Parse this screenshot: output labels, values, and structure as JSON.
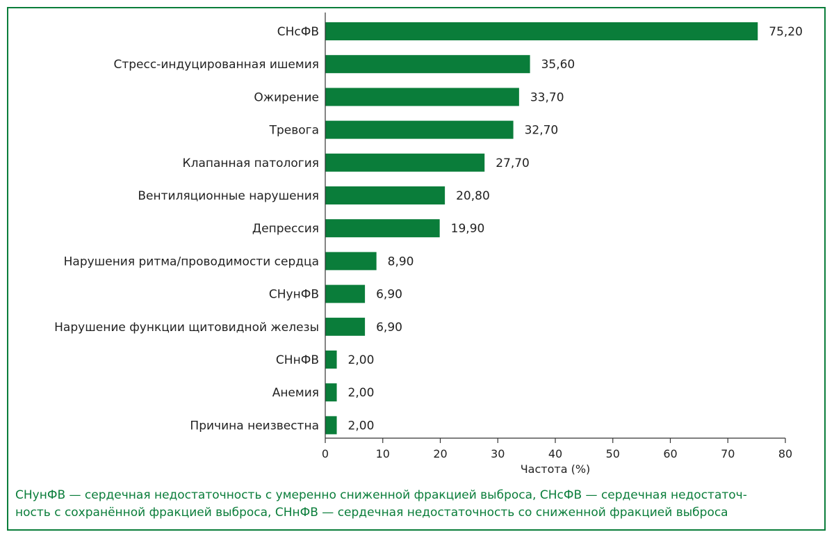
{
  "colors": {
    "bar": "#0a7d3a",
    "frame": "#0a7d3a",
    "footnote": "#0a7d3a",
    "text": "#222222"
  },
  "chart_data": {
    "type": "bar",
    "orientation": "horizontal",
    "categories": [
      "СНсФВ",
      "Стресс-индуцированная ишемия",
      "Ожирение",
      "Тревога",
      "Клапанная патология",
      "Вентиляционные нарушения",
      "Депрессия",
      "Нарушения ритма/проводимости сердца",
      "СНунФВ",
      "Нарушение функции щитовидной железы",
      "СНнФВ",
      "Анемия",
      "Причина неизвестна"
    ],
    "values": [
      75.2,
      35.6,
      33.7,
      32.7,
      27.7,
      20.8,
      19.9,
      8.9,
      6.9,
      6.9,
      2.0,
      2.0,
      2.0
    ],
    "value_labels": [
      "75,20",
      "35,60",
      "33,70",
      "32,70",
      "27,70",
      "20,80",
      "19,90",
      "8,90",
      "6,90",
      "6,90",
      "2,00",
      "2,00",
      "2,00"
    ],
    "title": "",
    "xlabel": "Частота (%)",
    "ylabel": "",
    "xlim": [
      0,
      80
    ],
    "xticks": [
      0,
      10,
      20,
      30,
      40,
      50,
      60,
      70,
      80
    ],
    "xtick_labels": [
      "0",
      "10",
      "20",
      "30",
      "40",
      "50",
      "60",
      "70",
      "80"
    ],
    "grid": false,
    "legend": "none"
  },
  "footnote": {
    "line1": "СНунФВ — сердечная недостаточность с умеренно сниженной фракцией выброса, СНсФВ — сердечная недостаточ-",
    "line2": "ность с сохранённой фракцией выброса, СНнФВ — сердечная недостаточность со сниженной фракцией выброса"
  }
}
